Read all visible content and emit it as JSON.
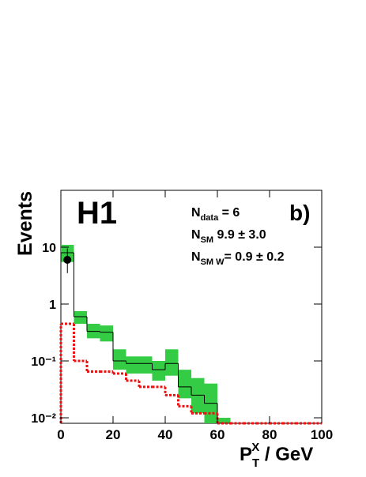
{
  "chart_data": {
    "type": "histogram",
    "logo": "H1",
    "panel": "b)",
    "ylabel": "Events",
    "xlabel": {
      "main": "P",
      "sub": "T",
      "sup": "X",
      "rest": " / GeV"
    },
    "annotations": [
      {
        "main": "N",
        "sub": "data",
        "rest": " = 6"
      },
      {
        "main": "N",
        "sub": "SM",
        "rest": "   9.9 ± 3.0"
      },
      {
        "main": "N",
        "sub": "SM W",
        "rest": "= 0.9 ± 0.2"
      }
    ],
    "bins": [
      0,
      5,
      10,
      15,
      20,
      25,
      30,
      35,
      40,
      45,
      50,
      55,
      60,
      65,
      70,
      75,
      80,
      85,
      90,
      95,
      100
    ],
    "values": [
      8,
      0.6,
      0.33,
      0.32,
      0.1,
      0.09,
      0.09,
      0.07,
      0.09,
      0.035,
      0.025,
      0.018,
      0.008,
      0.008,
      0.008,
      0.008,
      0.008,
      0.008,
      0.008,
      0.008
    ],
    "color": "#000000",
    "band_low": [
      5.5,
      0.45,
      0.25,
      0.22,
      0.07,
      0.06,
      0.06,
      0.045,
      0.055,
      0.022,
      0.012,
      0.008,
      0.008,
      null,
      null,
      null,
      null,
      null,
      null,
      null
    ],
    "band_high": [
      11,
      0.75,
      0.45,
      0.42,
      0.16,
      0.12,
      0.12,
      0.1,
      0.16,
      0.07,
      0.05,
      0.04,
      0.01,
      null,
      null,
      null,
      null,
      null,
      null,
      null
    ],
    "band_color": "#33cc44",
    "w_values": [
      0.45,
      0.1,
      0.065,
      0.065,
      0.06,
      0.045,
      0.035,
      0.035,
      0.025,
      0.016,
      0.012,
      0.012,
      0.008,
      0.008,
      0.008,
      0.008,
      0.008,
      0.008,
      0.008,
      0.008
    ],
    "w_color": "#ee1111",
    "data_point": {
      "x": 2.5,
      "y": 6,
      "err_low": 2.5,
      "err_high": 3.5
    },
    "xlim": [
      0,
      100
    ],
    "xticks": [
      0,
      20,
      40,
      60,
      80,
      100
    ],
    "ylim": [
      0.008,
      100
    ],
    "log_y": true,
    "yticks": [
      {
        "value": 0.01,
        "label": "10⁻²"
      },
      {
        "value": 0.1,
        "label": "10⁻¹"
      },
      1,
      10
    ]
  }
}
